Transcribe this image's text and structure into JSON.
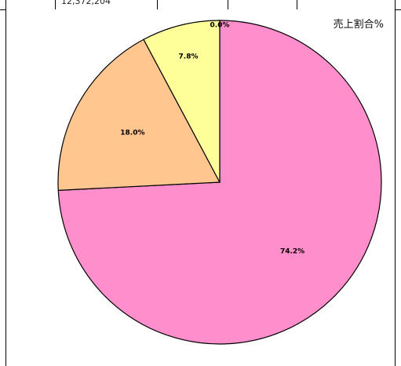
{
  "table_row": {
    "partial_value": "12,372,204"
  },
  "chart_data": {
    "type": "pie",
    "title": "売上割合%",
    "slices": [
      {
        "value": 74.2,
        "label": "74.2%",
        "color": "#ff8fcc"
      },
      {
        "value": 18.0,
        "label": "18.0%",
        "color": "#ffc68f"
      },
      {
        "value": 7.8,
        "label": "7.8%",
        "color": "#ffff99"
      },
      {
        "value": 0.0,
        "label": "0.0%",
        "color": "#ccffcc"
      }
    ],
    "start": "12 o'clock",
    "direction": "clockwise",
    "legend": "none",
    "stroke_color": "#000000"
  }
}
